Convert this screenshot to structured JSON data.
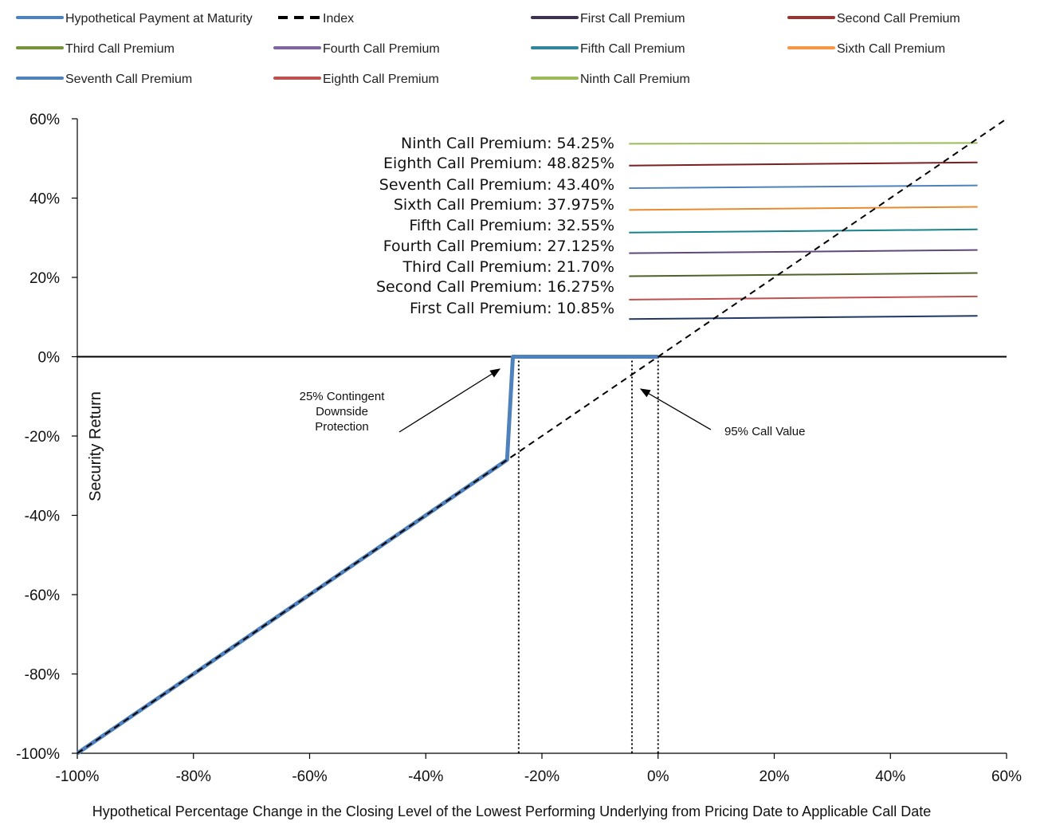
{
  "chart_data": {
    "type": "line",
    "xlabel": "Hypothetical  Percentage  Change  in  the  Closing  Level  of  the  Lowest  Performing  Underlying   from  Pricing  Date  to  Applicable  Call  Date",
    "ylabel": "Security Return",
    "xlim": [
      -100,
      60
    ],
    "ylim": [
      -100,
      60
    ],
    "x_ticks": [
      -100,
      -80,
      -60,
      -40,
      -20,
      0,
      20,
      40,
      60
    ],
    "y_ticks": [
      -100,
      -80,
      -60,
      -40,
      -20,
      0,
      20,
      40,
      60
    ],
    "x_tick_labels": [
      "-100%",
      "-80%",
      "-60%",
      "-40%",
      "-20%",
      "0%",
      "20%",
      "40%",
      "60%"
    ],
    "y_tick_labels": [
      "-100%",
      "-80%",
      "-60%",
      "-40%",
      "-20%",
      "0%",
      "20%",
      "40%",
      "60%"
    ],
    "legend_position": "top",
    "legend": [
      {
        "name": "Hypothetical Payment at Maturity",
        "color": "#4f81bd",
        "style": "solid"
      },
      {
        "name": "Index",
        "color": "#000000",
        "style": "dashed"
      },
      {
        "name": "First Call Premium",
        "color": "#403152",
        "style": "solid"
      },
      {
        "name": "Second Call Premium",
        "color": "#953735",
        "style": "solid"
      },
      {
        "name": "Third Call Premium",
        "color": "#77933c",
        "style": "solid"
      },
      {
        "name": "Fourth Call Premium",
        "color": "#8064a2",
        "style": "solid"
      },
      {
        "name": "Fifth Call Premium",
        "color": "#31859c",
        "style": "solid"
      },
      {
        "name": "Sixth Call Premium",
        "color": "#f79646",
        "style": "solid"
      },
      {
        "name": "Seventh Call Premium",
        "color": "#4f81bd",
        "style": "solid"
      },
      {
        "name": "Eighth Call Premium",
        "color": "#c0504d",
        "style": "solid"
      },
      {
        "name": "Ninth Call Premium",
        "color": "#9bbb59",
        "style": "solid"
      }
    ],
    "series": [
      {
        "name": "Hypothetical Payment at Maturity",
        "color": "#4f81bd",
        "x": [
          -100,
          -26,
          -25,
          -5,
          0
        ],
        "y": [
          -100,
          -26,
          0,
          0,
          0
        ]
      },
      {
        "name": "Index",
        "color": "#000000",
        "dashed": true,
        "x": [
          -100,
          60
        ],
        "y": [
          -100,
          60
        ]
      },
      {
        "name": "First Call Premium",
        "color": "#1f3864",
        "x": [
          -5,
          55
        ],
        "y": [
          9.5,
          10.3
        ]
      },
      {
        "name": "Second Call Premium",
        "color": "#c0504d",
        "x": [
          -5,
          55
        ],
        "y": [
          14.4,
          15.2
        ]
      },
      {
        "name": "Third Call Premium",
        "color": "#4f6228",
        "x": [
          -5,
          55
        ],
        "y": [
          20.3,
          21.1
        ]
      },
      {
        "name": "Fourth Call Premium",
        "color": "#5f497a",
        "x": [
          -5,
          55
        ],
        "y": [
          26.1,
          26.9
        ]
      },
      {
        "name": "Fifth Call Premium",
        "color": "#17828c",
        "x": [
          -5,
          55
        ],
        "y": [
          31.3,
          32.1
        ]
      },
      {
        "name": "Sixth Call Premium",
        "color": "#e88a2e",
        "x": [
          -5,
          55
        ],
        "y": [
          37.0,
          37.8
        ]
      },
      {
        "name": "Seventh Call Premium",
        "color": "#4f81bd",
        "x": [
          -5,
          55
        ],
        "y": [
          42.5,
          43.2
        ]
      },
      {
        "name": "Eighth Call Premium",
        "color": "#7b1f1f",
        "x": [
          -5,
          55
        ],
        "y": [
          48.2,
          49.0
        ]
      },
      {
        "name": "Ninth Call Premium",
        "color": "#9bbb59",
        "x": [
          -5,
          55
        ],
        "y": [
          53.7,
          53.9
        ]
      }
    ],
    "premium_labels": [
      "Ninth Call Premium: 54.25%",
      "Eighth Call Premium: 48.825%",
      "Seventh Call Premium: 43.40%",
      "Sixth Call Premium: 37.975%",
      "Fifth Call Premium: 32.55%",
      "Fourth Call Premium: 27.125%",
      "Third Call Premium: 21.70%",
      "Second Call Premium: 16.275%",
      "First Call Premium: 10.85%"
    ],
    "reference_lines_x": [
      -24,
      -4.5,
      0
    ],
    "annotations": [
      {
        "text_lines": [
          "25% Contingent",
          "Downside",
          "Protection"
        ],
        "points_to": [
          -26,
          -3
        ]
      },
      {
        "text_lines": [
          "95% Call Value"
        ],
        "points_to": [
          -3,
          -8
        ]
      }
    ]
  }
}
